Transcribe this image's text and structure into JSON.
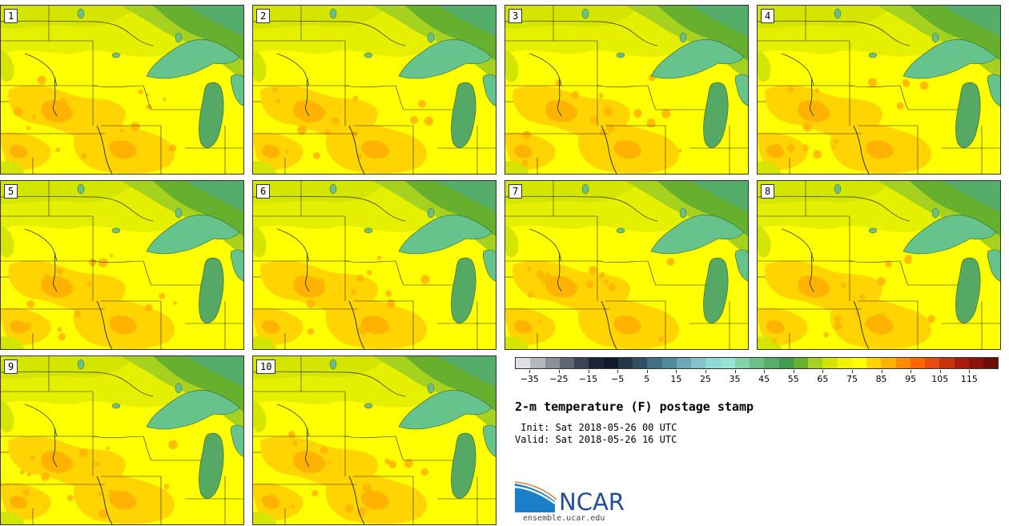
{
  "title": "2-m temperature (F) postage stamp",
  "init_line": " Init: Sat 2018-05-26 00 UTC",
  "valid_line": "Valid: Sat 2018-05-26 16 UTC",
  "logo": {
    "text": "NCAR",
    "site": "ensemble.ucar.edu"
  },
  "members": [
    {
      "label": "1"
    },
    {
      "label": "2"
    },
    {
      "label": "3"
    },
    {
      "label": "4"
    },
    {
      "label": "5"
    },
    {
      "label": "6"
    },
    {
      "label": "7"
    },
    {
      "label": "8"
    },
    {
      "label": "9"
    },
    {
      "label": "10"
    }
  ],
  "colorbar": {
    "colors": [
      "#dde0e4",
      "#b3b8be",
      "#8a8f99",
      "#5e6675",
      "#3a4358",
      "#1b2439",
      "#111a2b",
      "#26364a",
      "#2f4f66",
      "#3f6f85",
      "#4e8a9c",
      "#6aa9b8",
      "#84c3c9",
      "#8ed9d4",
      "#97e3d5",
      "#85d1a8",
      "#6cbf86",
      "#55ad6a",
      "#419a4d",
      "#66b02e",
      "#a6d11f",
      "#d4e600",
      "#f5f200",
      "#ffff00",
      "#ffd400",
      "#ffb300",
      "#ff8c00",
      "#ff6600",
      "#e84a10",
      "#c9300c",
      "#a91a0b",
      "#8a1208",
      "#6e0d06"
    ],
    "tick_values": [
      "−35",
      "−25",
      "−15",
      "−5",
      "5",
      "15",
      "25",
      "35",
      "45",
      "55",
      "65",
      "75",
      "85",
      "95",
      "105",
      "115"
    ],
    "min": -40,
    "max": 125
  }
}
